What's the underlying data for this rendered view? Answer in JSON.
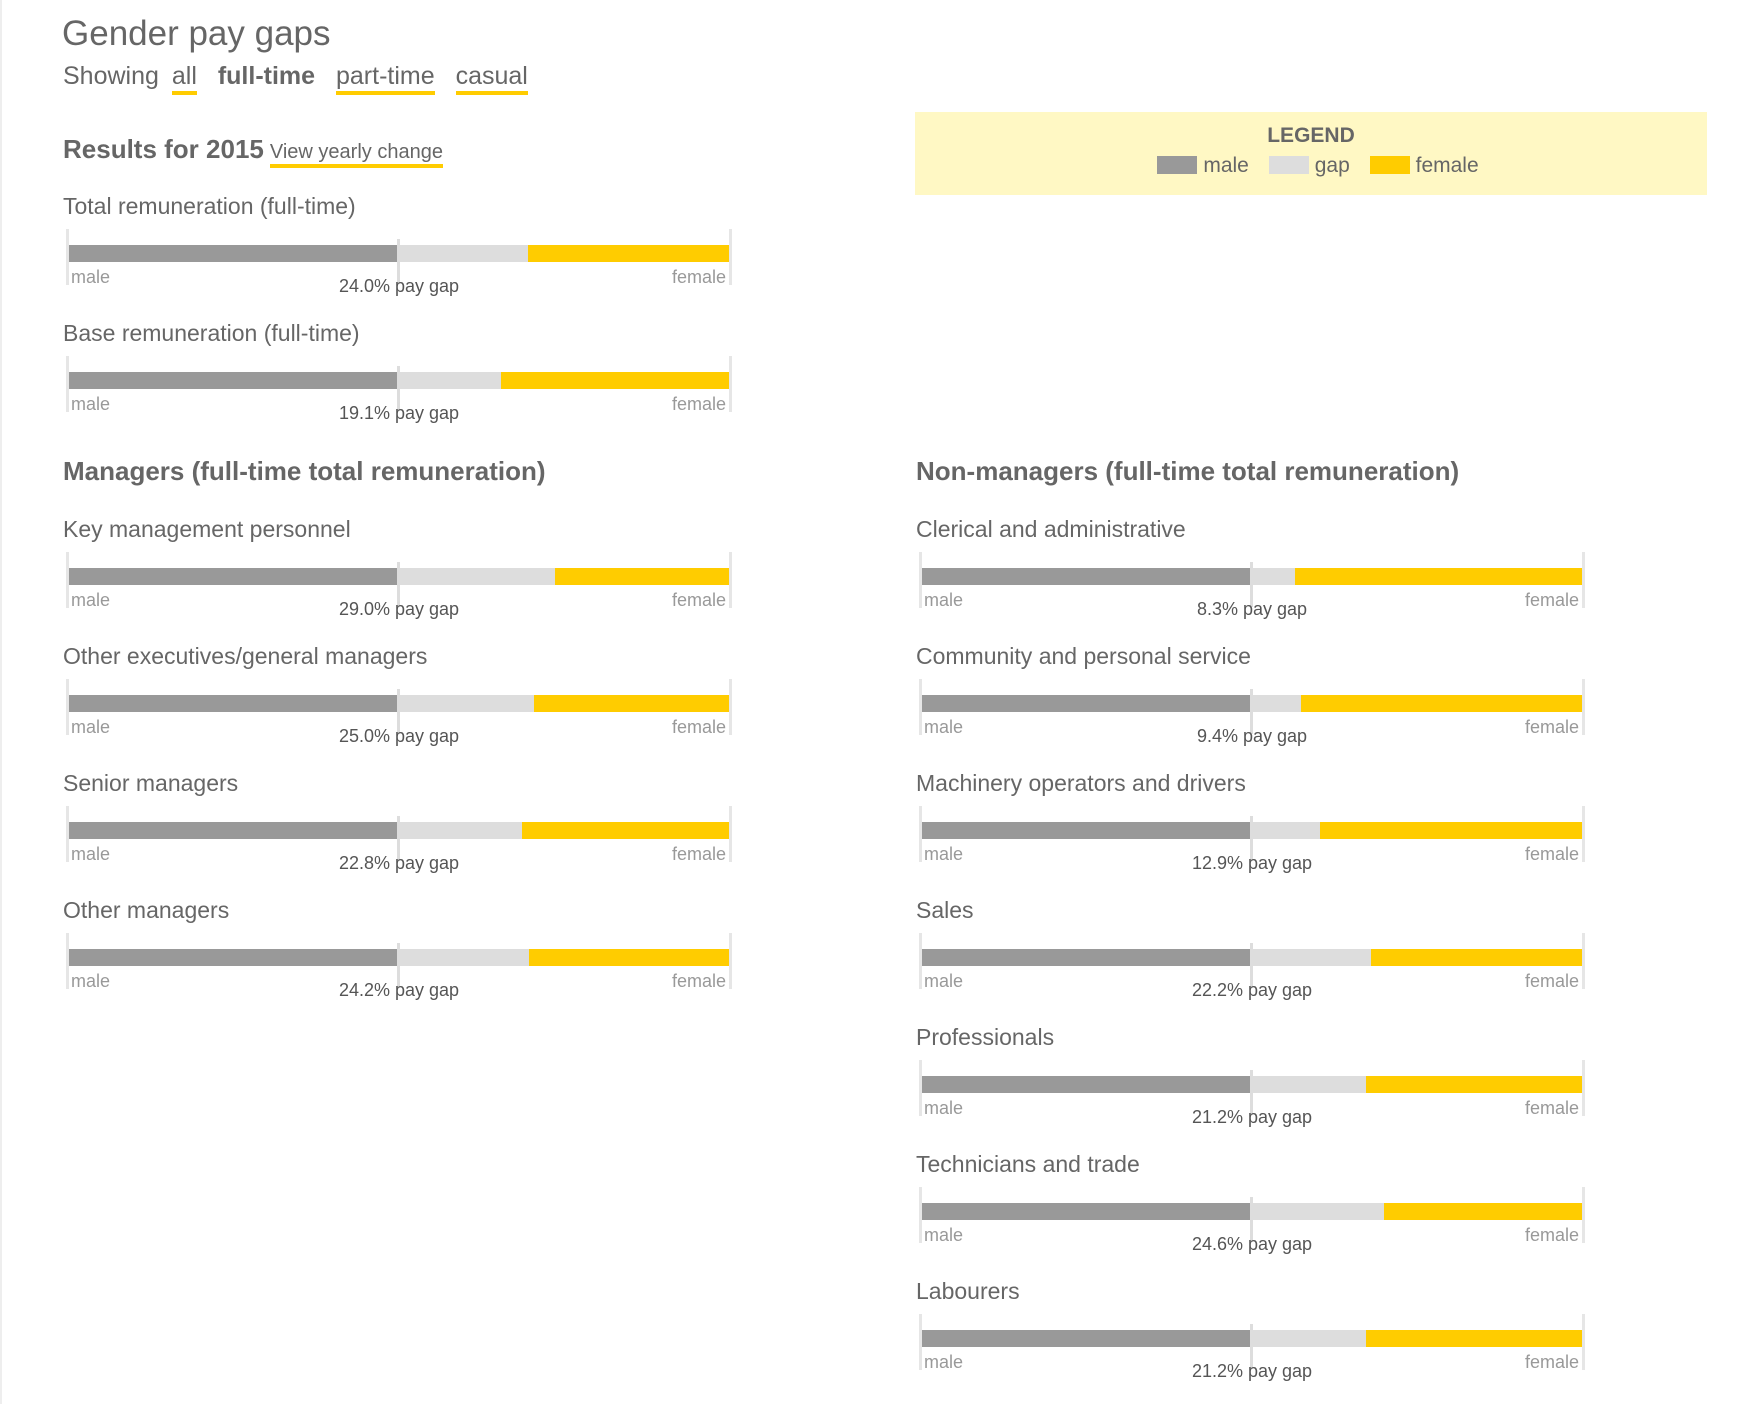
{
  "header": {
    "title": "Gender pay gaps",
    "showing": "Showing",
    "filters": [
      {
        "label": "all",
        "active": false
      },
      {
        "label": "full-time",
        "active": true
      },
      {
        "label": "part-time",
        "active": false
      },
      {
        "label": "casual",
        "active": false
      }
    ]
  },
  "results": {
    "title": "Results for 2015",
    "link": "View yearly change"
  },
  "legend": {
    "title": "LEGEND",
    "items": [
      {
        "label": "male",
        "color": "#999999"
      },
      {
        "label": "gap",
        "color": "#dddddd"
      },
      {
        "label": "female",
        "color": "#ffcc00"
      }
    ]
  },
  "labels": {
    "male": "male",
    "female": "female",
    "pay_gap_suffix": "% pay gap"
  },
  "chart_data": {
    "type": "bar",
    "overall": [
      {
        "name": "Total remuneration (full-time)",
        "gap": 24.0
      },
      {
        "name": "Base remuneration (full-time)",
        "gap": 19.1
      }
    ],
    "managers": {
      "title": "Managers (full-time total remuneration)",
      "rows": [
        {
          "name": "Key management personnel",
          "gap": 29.0
        },
        {
          "name": "Other executives/general managers",
          "gap": 25.0
        },
        {
          "name": "Senior managers",
          "gap": 22.8
        },
        {
          "name": "Other managers",
          "gap": 24.2
        }
      ]
    },
    "non_managers": {
      "title": "Non-managers (full-time total remuneration)",
      "rows": [
        {
          "name": "Clerical and administrative",
          "gap": 8.3
        },
        {
          "name": "Community and personal service",
          "gap": 9.4
        },
        {
          "name": "Machinery operators and drivers",
          "gap": 12.9
        },
        {
          "name": "Sales",
          "gap": 22.2
        },
        {
          "name": "Professionals",
          "gap": 21.2
        },
        {
          "name": "Technicians and trade",
          "gap": 24.6
        },
        {
          "name": "Labourers",
          "gap": 21.2
        }
      ]
    }
  }
}
